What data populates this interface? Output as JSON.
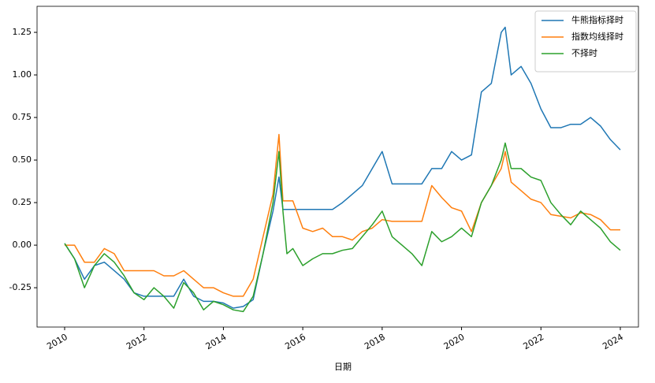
{
  "chart_data": {
    "type": "line",
    "xlabel": "日期",
    "x": [
      2010,
      2010.25,
      2010.5,
      2010.75,
      2011,
      2011.25,
      2011.5,
      2011.75,
      2012,
      2012.25,
      2012.5,
      2012.75,
      2013,
      2013.25,
      2013.5,
      2013.75,
      2014,
      2014.25,
      2014.5,
      2014.75,
      2015,
      2015.25,
      2015.4,
      2015.5,
      2015.6,
      2015.75,
      2016,
      2016.25,
      2016.5,
      2016.75,
      2017,
      2017.25,
      2017.5,
      2017.75,
      2018,
      2018.25,
      2018.5,
      2018.75,
      2019,
      2019.25,
      2019.5,
      2019.75,
      2020,
      2020.25,
      2020.5,
      2020.75,
      2021,
      2021.1,
      2021.25,
      2021.5,
      2021.75,
      2022,
      2022.25,
      2022.5,
      2022.75,
      2023,
      2023.25,
      2023.5,
      2023.75,
      2024
    ],
    "series": [
      {
        "name": "牛熊指标择时",
        "color": "#1f77b4",
        "values": [
          0.01,
          -0.08,
          -0.2,
          -0.12,
          -0.1,
          -0.15,
          -0.2,
          -0.28,
          -0.3,
          -0.3,
          -0.3,
          -0.3,
          -0.2,
          -0.3,
          -0.33,
          -0.33,
          -0.34,
          -0.37,
          -0.36,
          -0.32,
          -0.05,
          0.2,
          0.4,
          0.21,
          0.21,
          0.21,
          0.21,
          0.21,
          0.21,
          0.21,
          0.25,
          0.3,
          0.35,
          0.45,
          0.55,
          0.36,
          0.36,
          0.36,
          0.36,
          0.45,
          0.45,
          0.55,
          0.5,
          0.53,
          0.9,
          0.95,
          1.25,
          1.28,
          1.0,
          1.05,
          0.95,
          0.8,
          0.69,
          0.69,
          0.71,
          0.71,
          0.75,
          0.7,
          0.62,
          0.56
        ]
      },
      {
        "name": "指数均线择时",
        "color": "#ff7f0e",
        "values": [
          0,
          0,
          -0.1,
          -0.1,
          -0.02,
          -0.05,
          -0.15,
          -0.15,
          -0.15,
          -0.15,
          -0.18,
          -0.18,
          -0.15,
          -0.2,
          -0.25,
          -0.25,
          -0.28,
          -0.3,
          -0.3,
          -0.2,
          0.05,
          0.3,
          0.65,
          0.26,
          0.26,
          0.26,
          0.1,
          0.08,
          0.1,
          0.05,
          0.05,
          0.03,
          0.08,
          0.1,
          0.15,
          0.14,
          0.14,
          0.14,
          0.14,
          0.35,
          0.28,
          0.22,
          0.2,
          0.08,
          0.25,
          0.35,
          0.45,
          0.55,
          0.37,
          0.32,
          0.27,
          0.25,
          0.18,
          0.17,
          0.16,
          0.19,
          0.18,
          0.15,
          0.09,
          0.09
        ]
      },
      {
        "name": "不择时",
        "color": "#2ca02c",
        "values": [
          0.01,
          -0.08,
          -0.25,
          -0.12,
          -0.05,
          -0.1,
          -0.18,
          -0.28,
          -0.32,
          -0.25,
          -0.3,
          -0.37,
          -0.22,
          -0.28,
          -0.38,
          -0.33,
          -0.35,
          -0.38,
          -0.39,
          -0.3,
          -0.05,
          0.25,
          0.55,
          0.2,
          -0.05,
          -0.02,
          -0.12,
          -0.08,
          -0.05,
          -0.05,
          -0.03,
          -0.02,
          0.05,
          0.12,
          0.2,
          0.05,
          0,
          -0.05,
          -0.12,
          0.08,
          0.02,
          0.05,
          0.1,
          0.05,
          0.25,
          0.35,
          0.5,
          0.6,
          0.45,
          0.45,
          0.4,
          0.38,
          0.25,
          0.18,
          0.12,
          0.2,
          0.15,
          0.1,
          0.02,
          -0.03
        ]
      }
    ],
    "xlim": [
      2009.305,
      2024.457
    ],
    "xticks": [
      2010,
      2012,
      2014,
      2016,
      2018,
      2020,
      2022,
      2024
    ],
    "ylim": [
      -0.481,
      1.403
    ],
    "yticks": [
      -0.25,
      {
        "value": 0,
        "label": "0.00"
      },
      0.25,
      {
        "value": 0.5,
        "label": "0.50"
      },
      0.75,
      {
        "value": 1,
        "label": "1.00"
      },
      1.25
    ],
    "legend": "upper right"
  }
}
